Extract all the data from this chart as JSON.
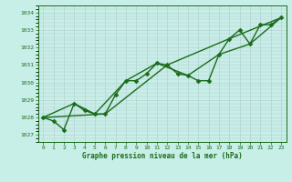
{
  "title": "Graphe pression niveau de la mer (hPa)",
  "bg_color": "#c8eee8",
  "grid_color": "#b0cccc",
  "line_color": "#1a6b1a",
  "marker_color": "#1a6b1a",
  "xlim": [
    -0.5,
    23.5
  ],
  "ylim": [
    1026.6,
    1034.4
  ],
  "xticks": [
    0,
    1,
    2,
    3,
    4,
    5,
    6,
    7,
    8,
    9,
    10,
    11,
    12,
    13,
    14,
    15,
    16,
    17,
    18,
    19,
    20,
    21,
    22,
    23
  ],
  "yticks": [
    1027,
    1028,
    1029,
    1030,
    1031,
    1032,
    1033,
    1034
  ],
  "series": [
    {
      "x": [
        0,
        1,
        2,
        3,
        4,
        5,
        6,
        7,
        8,
        9,
        10,
        11,
        12,
        13,
        14,
        15,
        16,
        17,
        18,
        19,
        20,
        21,
        22,
        23
      ],
      "y": [
        1028.0,
        1027.8,
        1027.3,
        1028.8,
        1028.4,
        1028.2,
        1028.2,
        1029.3,
        1030.1,
        1030.1,
        1030.5,
        1031.1,
        1031.0,
        1030.5,
        1030.4,
        1030.1,
        1030.1,
        1031.6,
        1032.5,
        1033.0,
        1032.2,
        1033.3,
        1033.3,
        1033.7
      ],
      "marker": "D",
      "markersize": 2.5,
      "linewidth": 1.0
    },
    {
      "x": [
        0,
        3,
        5,
        8,
        11,
        14,
        17,
        20,
        23
      ],
      "y": [
        1028.0,
        1028.8,
        1028.2,
        1030.1,
        1031.1,
        1030.4,
        1031.6,
        1032.2,
        1033.7
      ],
      "marker": null,
      "markersize": 0,
      "linewidth": 1.0
    },
    {
      "x": [
        0,
        6,
        12,
        18,
        23
      ],
      "y": [
        1028.0,
        1028.2,
        1031.0,
        1032.5,
        1033.7
      ],
      "marker": null,
      "markersize": 0,
      "linewidth": 1.0
    }
  ]
}
